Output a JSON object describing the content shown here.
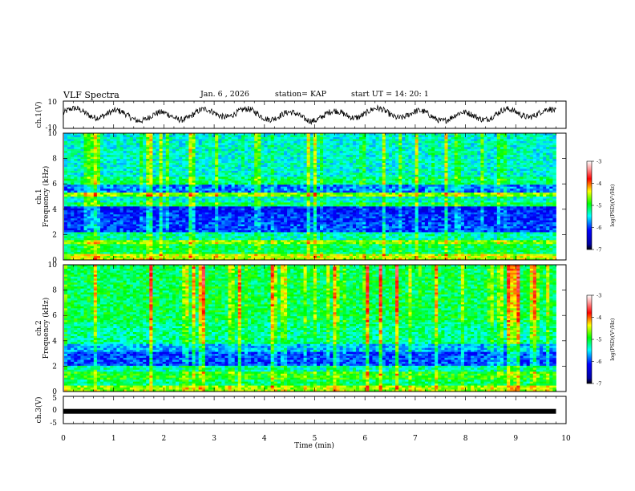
{
  "header": {
    "title": "VLF Spectra",
    "date": "Jan. 6 , 2026",
    "station": "station= KAP",
    "start_ut": "start  UT =  14: 20: 1"
  },
  "chart_data": [
    {
      "id": "ch1-waveform",
      "type": "line",
      "ylabel": "ch.1(V)",
      "ylim": [
        -10,
        10
      ],
      "yticks": [
        "10",
        "-10"
      ],
      "xlim": [
        0,
        10
      ],
      "description_values": "noisy waveform oscillating roughly between -5 and 5 V"
    },
    {
      "id": "ch1-spectrogram",
      "type": "heatmap",
      "ylabel_top": "ch.1",
      "ylabel": "Frequency (kHz)",
      "ylim": [
        0,
        10
      ],
      "yticks": [
        "0",
        "2",
        "4",
        "6",
        "8",
        "10"
      ],
      "xlim": [
        0,
        9.8
      ],
      "colorbar": {
        "label": "log(PSD)(V²/Hz)",
        "range": [
          -7,
          -3
        ],
        "ticks": [
          "-3",
          "-4",
          "-5",
          "-6",
          "-7"
        ]
      }
    },
    {
      "id": "ch2-spectrogram",
      "type": "heatmap",
      "ylabel_top": "ch.2",
      "ylabel": "Frequency (kHz)",
      "ylim": [
        0,
        10
      ],
      "yticks": [
        "0",
        "2",
        "4",
        "6",
        "8",
        "10"
      ],
      "xlim": [
        0,
        9.8
      ],
      "colorbar": {
        "label": "log(PSD)(V²/Hz)",
        "range": [
          -7,
          -3
        ],
        "ticks": [
          "-3",
          "-4",
          "-5",
          "-6",
          "-7"
        ]
      }
    },
    {
      "id": "ch3-waveform",
      "type": "line",
      "ylabel": "ch.3(V)",
      "ylim": [
        -5,
        5
      ],
      "yticks": [
        "5",
        "0",
        "-5"
      ],
      "level": -0.5,
      "xlim": [
        0,
        10
      ]
    }
  ],
  "xaxis": {
    "label": "Time (min)",
    "ticks": [
      "0",
      "1",
      "2",
      "3",
      "4",
      "5",
      "6",
      "7",
      "8",
      "9",
      "10"
    ],
    "range": [
      0,
      10
    ]
  }
}
